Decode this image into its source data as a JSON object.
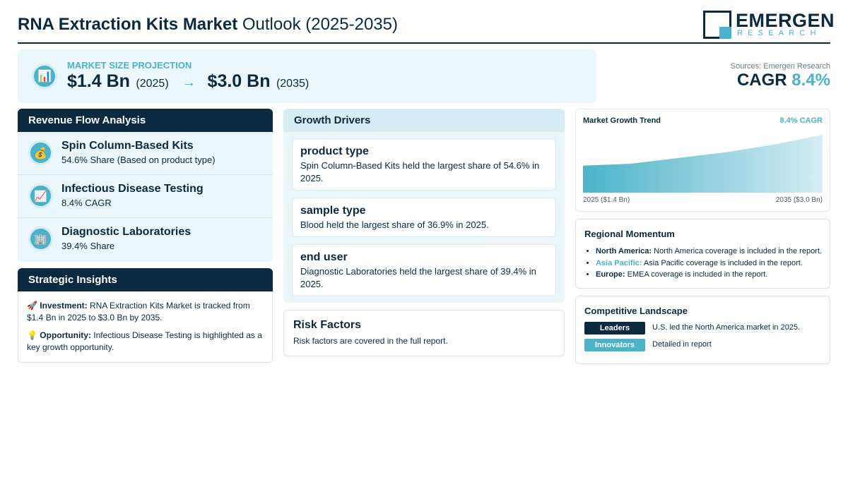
{
  "header": {
    "title_bold": "RNA Extraction Kits Market",
    "title_rest": " Outlook (2025-2035)",
    "logo_name": "EMERGEN",
    "logo_sub": "RESEARCH"
  },
  "projection": {
    "icon": "bar-chart-icon",
    "label": "MARKET SIZE PROJECTION",
    "start_value": "$1.4 Bn",
    "start_year": "(2025)",
    "arrow": "→",
    "end_value": "$3.0 Bn",
    "end_year": "(2035)"
  },
  "summary": {
    "sources": "Sources: Emergen Research",
    "cagr_label": "CAGR",
    "cagr_value": "8.4%"
  },
  "revenue": {
    "title": "Revenue Flow Analysis",
    "items": [
      {
        "icon": "money-bag-icon",
        "title": "Spin Column-Based Kits",
        "subtitle": "54.6% Share (Based on product type)"
      },
      {
        "icon": "chart-increasing-icon",
        "title": "Infectious Disease Testing",
        "subtitle": "8.4% CAGR"
      },
      {
        "icon": "office-building-icon",
        "title": "Diagnostic Laboratories",
        "subtitle": "39.4% Share"
      }
    ]
  },
  "insights": {
    "title": "Strategic Insights",
    "investment_icon": "rocket-icon",
    "investment_label": "Investment:",
    "investment_text": " RNA Extraction Kits Market is tracked from $1.4 Bn in 2025 to $3.0 Bn by 2035.",
    "opportunity_icon": "light-bulb-icon",
    "opportunity_label": "Opportunity:",
    "opportunity_text": " Infectious Disease Testing is highlighted as a key growth opportunity."
  },
  "drivers": {
    "title": "Growth Drivers",
    "cards": [
      {
        "title": "product type",
        "text": "Spin Column-Based Kits held the largest share of 54.6% in 2025."
      },
      {
        "title": "sample type",
        "text": "Blood held the largest share of 36.9% in 2025."
      },
      {
        "title": "end user",
        "text": "Diagnostic Laboratories held the largest share of 39.4% in 2025."
      }
    ]
  },
  "risk": {
    "title": "Risk Factors",
    "text": "Risk factors are covered in the full report."
  },
  "trend": {
    "title": "Market Growth Trend",
    "cagr": "8.4% CAGR",
    "start_label": "2025 ($1.4 Bn)",
    "end_label": "2035 ($3.0 Bn)"
  },
  "chart_data": {
    "type": "area",
    "x": [
      2025,
      2027,
      2029,
      2031,
      2033,
      2035
    ],
    "values": [
      1.4,
      1.5,
      1.8,
      2.1,
      2.5,
      3.0
    ],
    "x_range": [
      2025,
      2035
    ],
    "ylim": [
      0,
      3.0
    ],
    "grid": false,
    "title": "Market Growth Trend",
    "color_start": "#4bb3c9",
    "color_end": "#d5edf3"
  },
  "regional": {
    "title": "Regional Momentum",
    "items": [
      {
        "region": "North America:",
        "text": " North America coverage is included in the report.",
        "accent": false
      },
      {
        "region": "Asia Pacific:",
        "text": " Asia Pacific coverage is included in the report.",
        "accent": true
      },
      {
        "region": "Europe:",
        "text": " EMEA coverage is included in the report.",
        "accent": false
      }
    ]
  },
  "competitive": {
    "title": "Competitive Landscape",
    "rows": [
      {
        "badge": "Leaders",
        "text": "U.S. led the North America market in 2025."
      },
      {
        "badge": "Innovators",
        "text": "Detailed in report"
      }
    ]
  },
  "colors": {
    "navy": "#0b2a3f",
    "accent": "#4bb3c9",
    "panel_bg": "#eaf6f9"
  }
}
